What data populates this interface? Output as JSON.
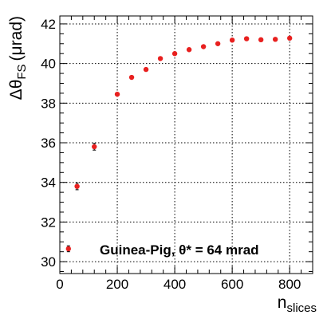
{
  "chart_data": {
    "type": "scatter",
    "xlabel_main": "n",
    "xlabel_sub": "slices",
    "ylabel_main": "Δθ",
    "ylabel_sub": "FS",
    "ylabel_unit": "(μrad)",
    "annotation": "Guinea-Pig,  θ* = 64 mrad",
    "xlim": [
      0,
      880
    ],
    "ylim": [
      29.4,
      42.4
    ],
    "x_ticks": [
      0,
      200,
      400,
      600,
      800
    ],
    "x_tick_labels": [
      "0",
      "200",
      "400",
      "600",
      "800"
    ],
    "y_ticks": [
      30,
      32,
      34,
      36,
      38,
      40,
      42
    ],
    "y_tick_labels": [
      "30",
      "32",
      "34",
      "36",
      "38",
      "40",
      "42"
    ],
    "grid": true,
    "marker_color": "#e8201f",
    "series": [
      {
        "x": [
          30,
          60,
          120,
          200,
          250,
          300,
          350,
          400,
          450,
          500,
          550,
          600,
          650,
          700,
          750,
          800
        ],
        "y": [
          30.65,
          33.8,
          35.8,
          38.45,
          39.3,
          39.7,
          40.25,
          40.5,
          40.7,
          40.85,
          41.0,
          41.18,
          41.25,
          41.2,
          41.22,
          41.28
        ],
        "yerr": [
          0.15,
          0.17,
          0.17,
          0.05,
          0.05,
          0.05,
          0.05,
          0.05,
          0.05,
          0.05,
          0.05,
          0.05,
          0.05,
          0.05,
          0.05,
          0.05
        ]
      }
    ]
  }
}
